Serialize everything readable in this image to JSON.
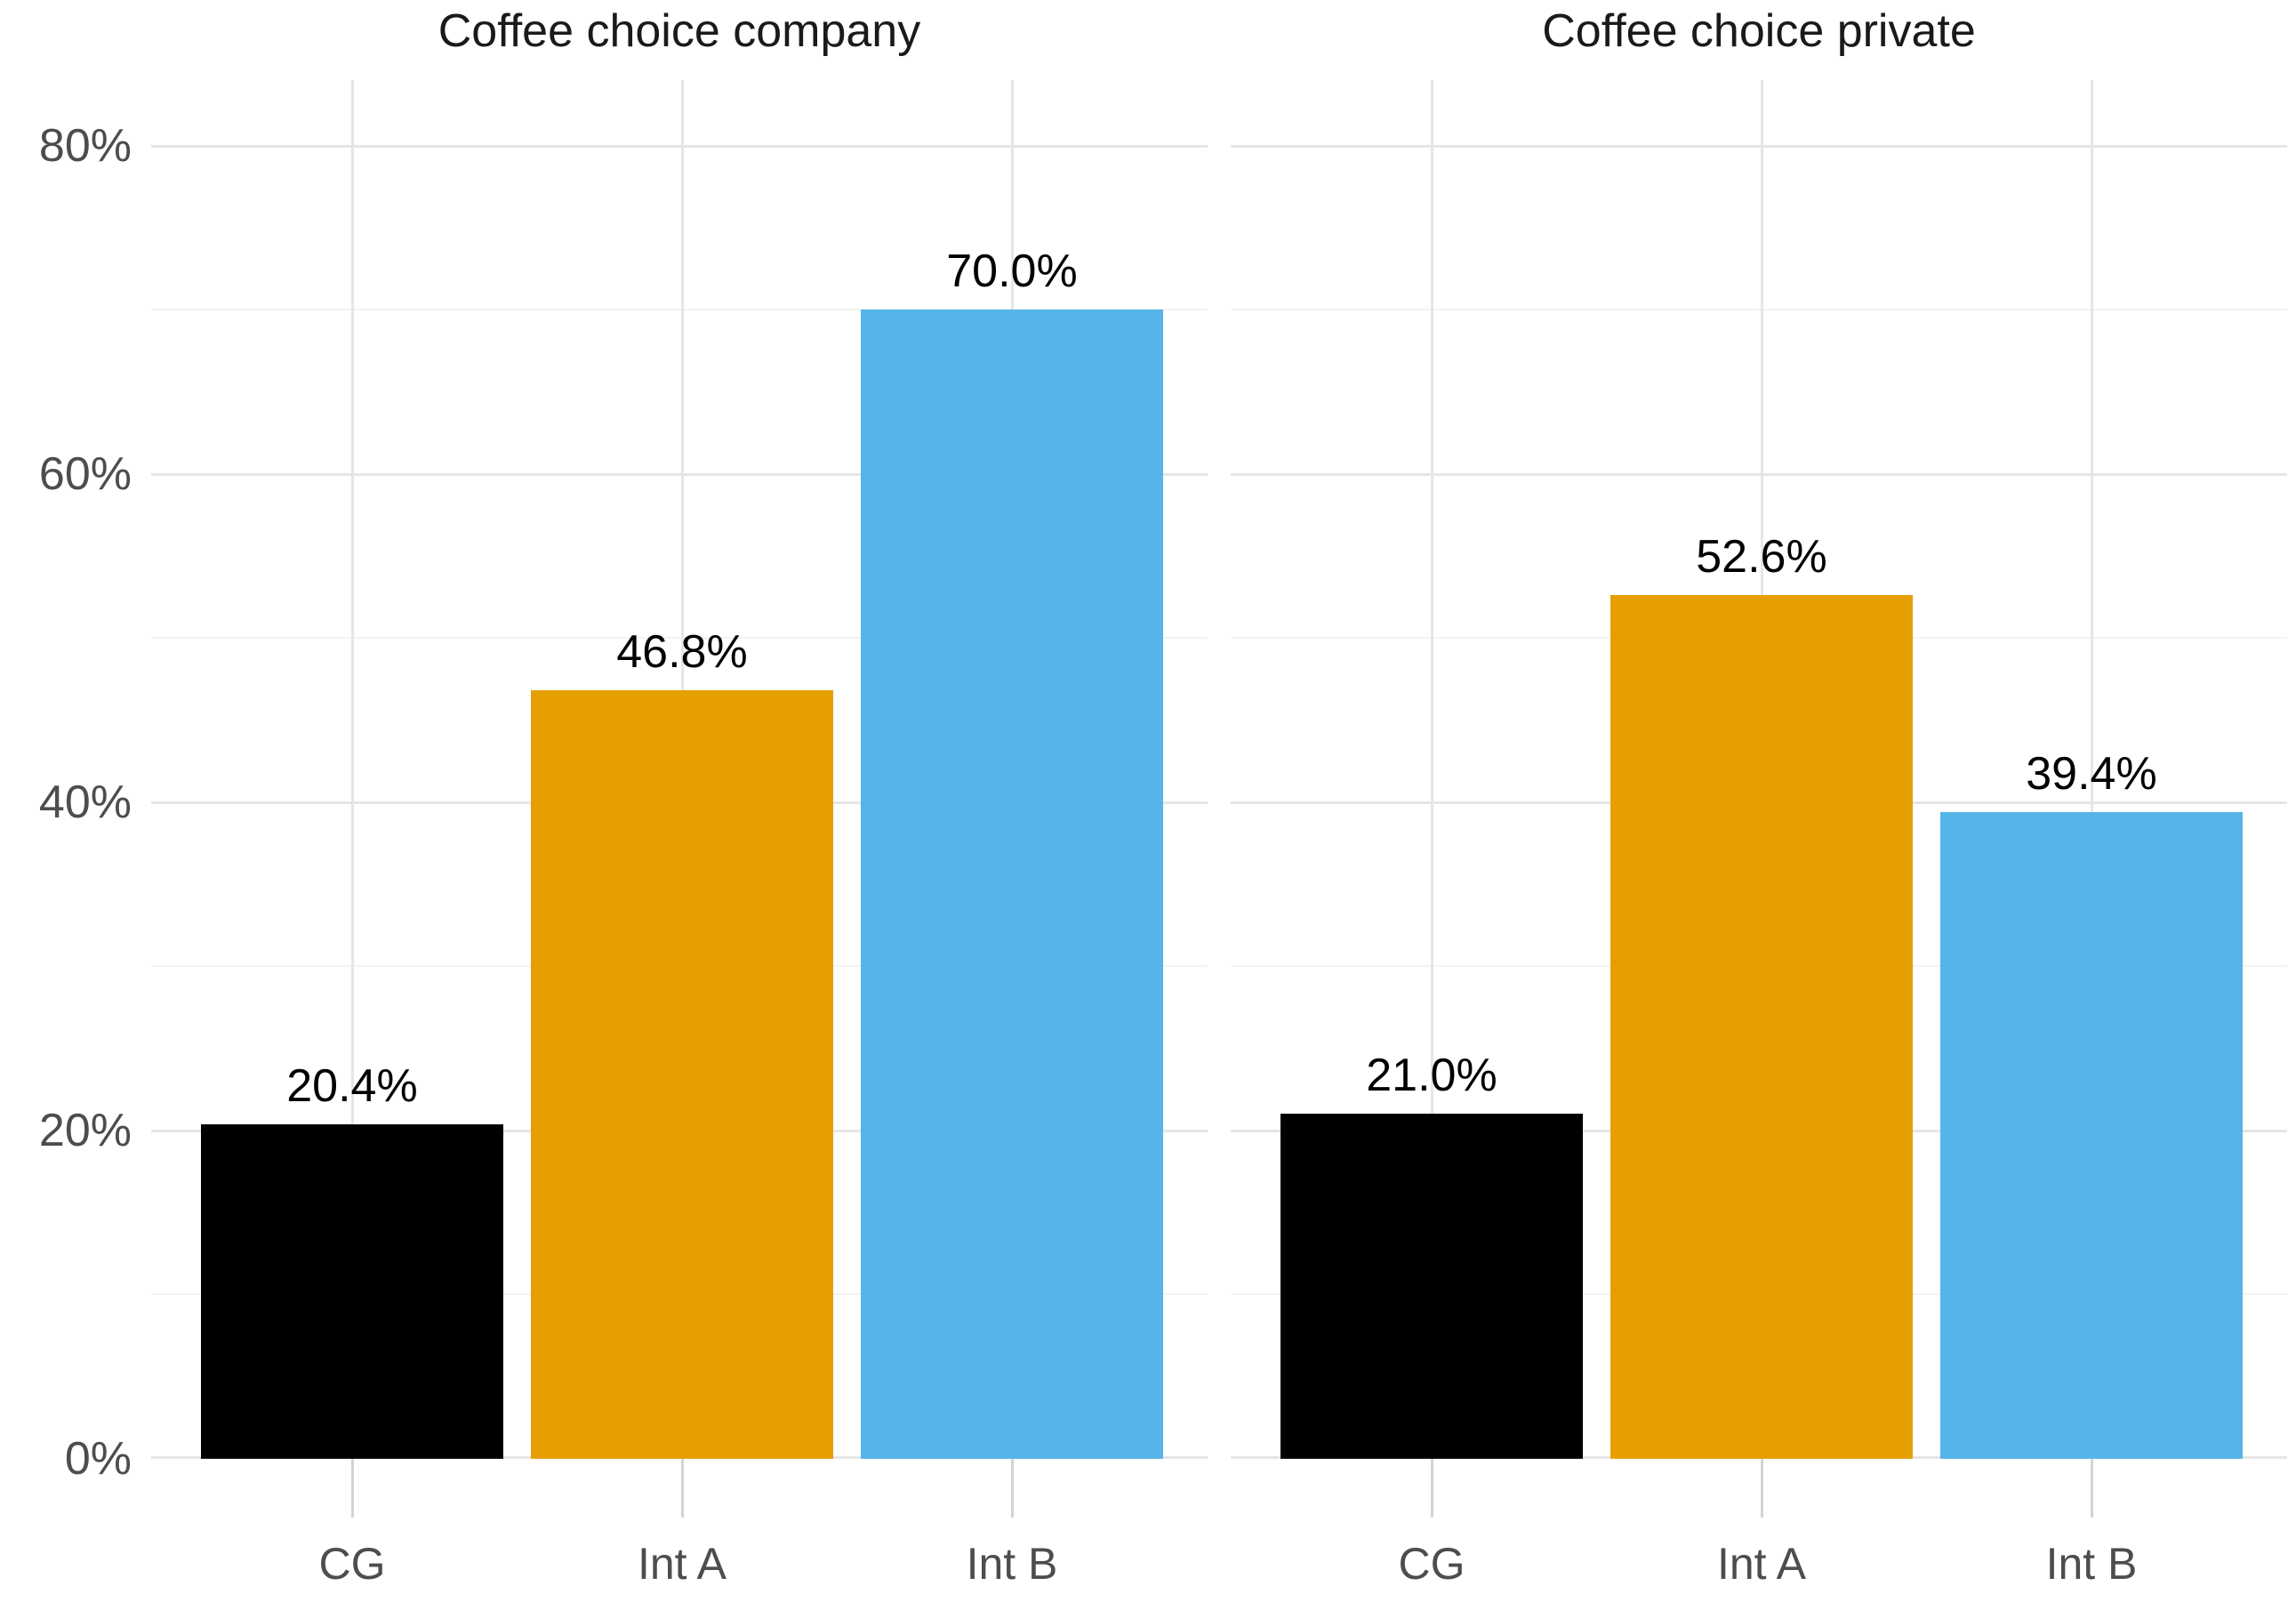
{
  "chart_data": {
    "type": "bar",
    "layout": "two_facet_panels_sharing_y_axis",
    "grid": "on",
    "legend": "none",
    "panels": [
      {
        "title": "Coffee choice company",
        "categories": [
          "CG",
          "Int A",
          "Int B"
        ],
        "values": [
          20.4,
          46.8,
          70.0
        ],
        "value_labels": [
          "20.4%",
          "46.8%",
          "70.0%"
        ]
      },
      {
        "title": "Coffee choice private",
        "categories": [
          "CG",
          "Int A",
          "Int B"
        ],
        "values": [
          21.0,
          52.6,
          39.4
        ],
        "value_labels": [
          "21.0%",
          "52.6%",
          "39.4%"
        ]
      }
    ],
    "bar_colors": [
      "#000000",
      "#E69F00",
      "#56B4E9"
    ],
    "xlabel": "",
    "ylabel": "",
    "y_axis": {
      "tick_values": [
        0,
        20,
        40,
        60,
        80
      ],
      "tick_labels": [
        "0%",
        "20%",
        "40%",
        "60%",
        "80%"
      ],
      "minor_tick_values": [
        10,
        30,
        50,
        70
      ],
      "ylim": [
        0,
        84
      ]
    },
    "colors": {
      "major_gridline": "#E6E6E6",
      "minor_gridline": "#F3F3F3",
      "vertical_gridline": "#E6E6E6",
      "tick_mark": "#D4D4D4",
      "axis_text": "#4D4D4D",
      "title_text": "#1A1A1A",
      "value_label_text": "#000000",
      "background": "#FFFFFF"
    }
  }
}
